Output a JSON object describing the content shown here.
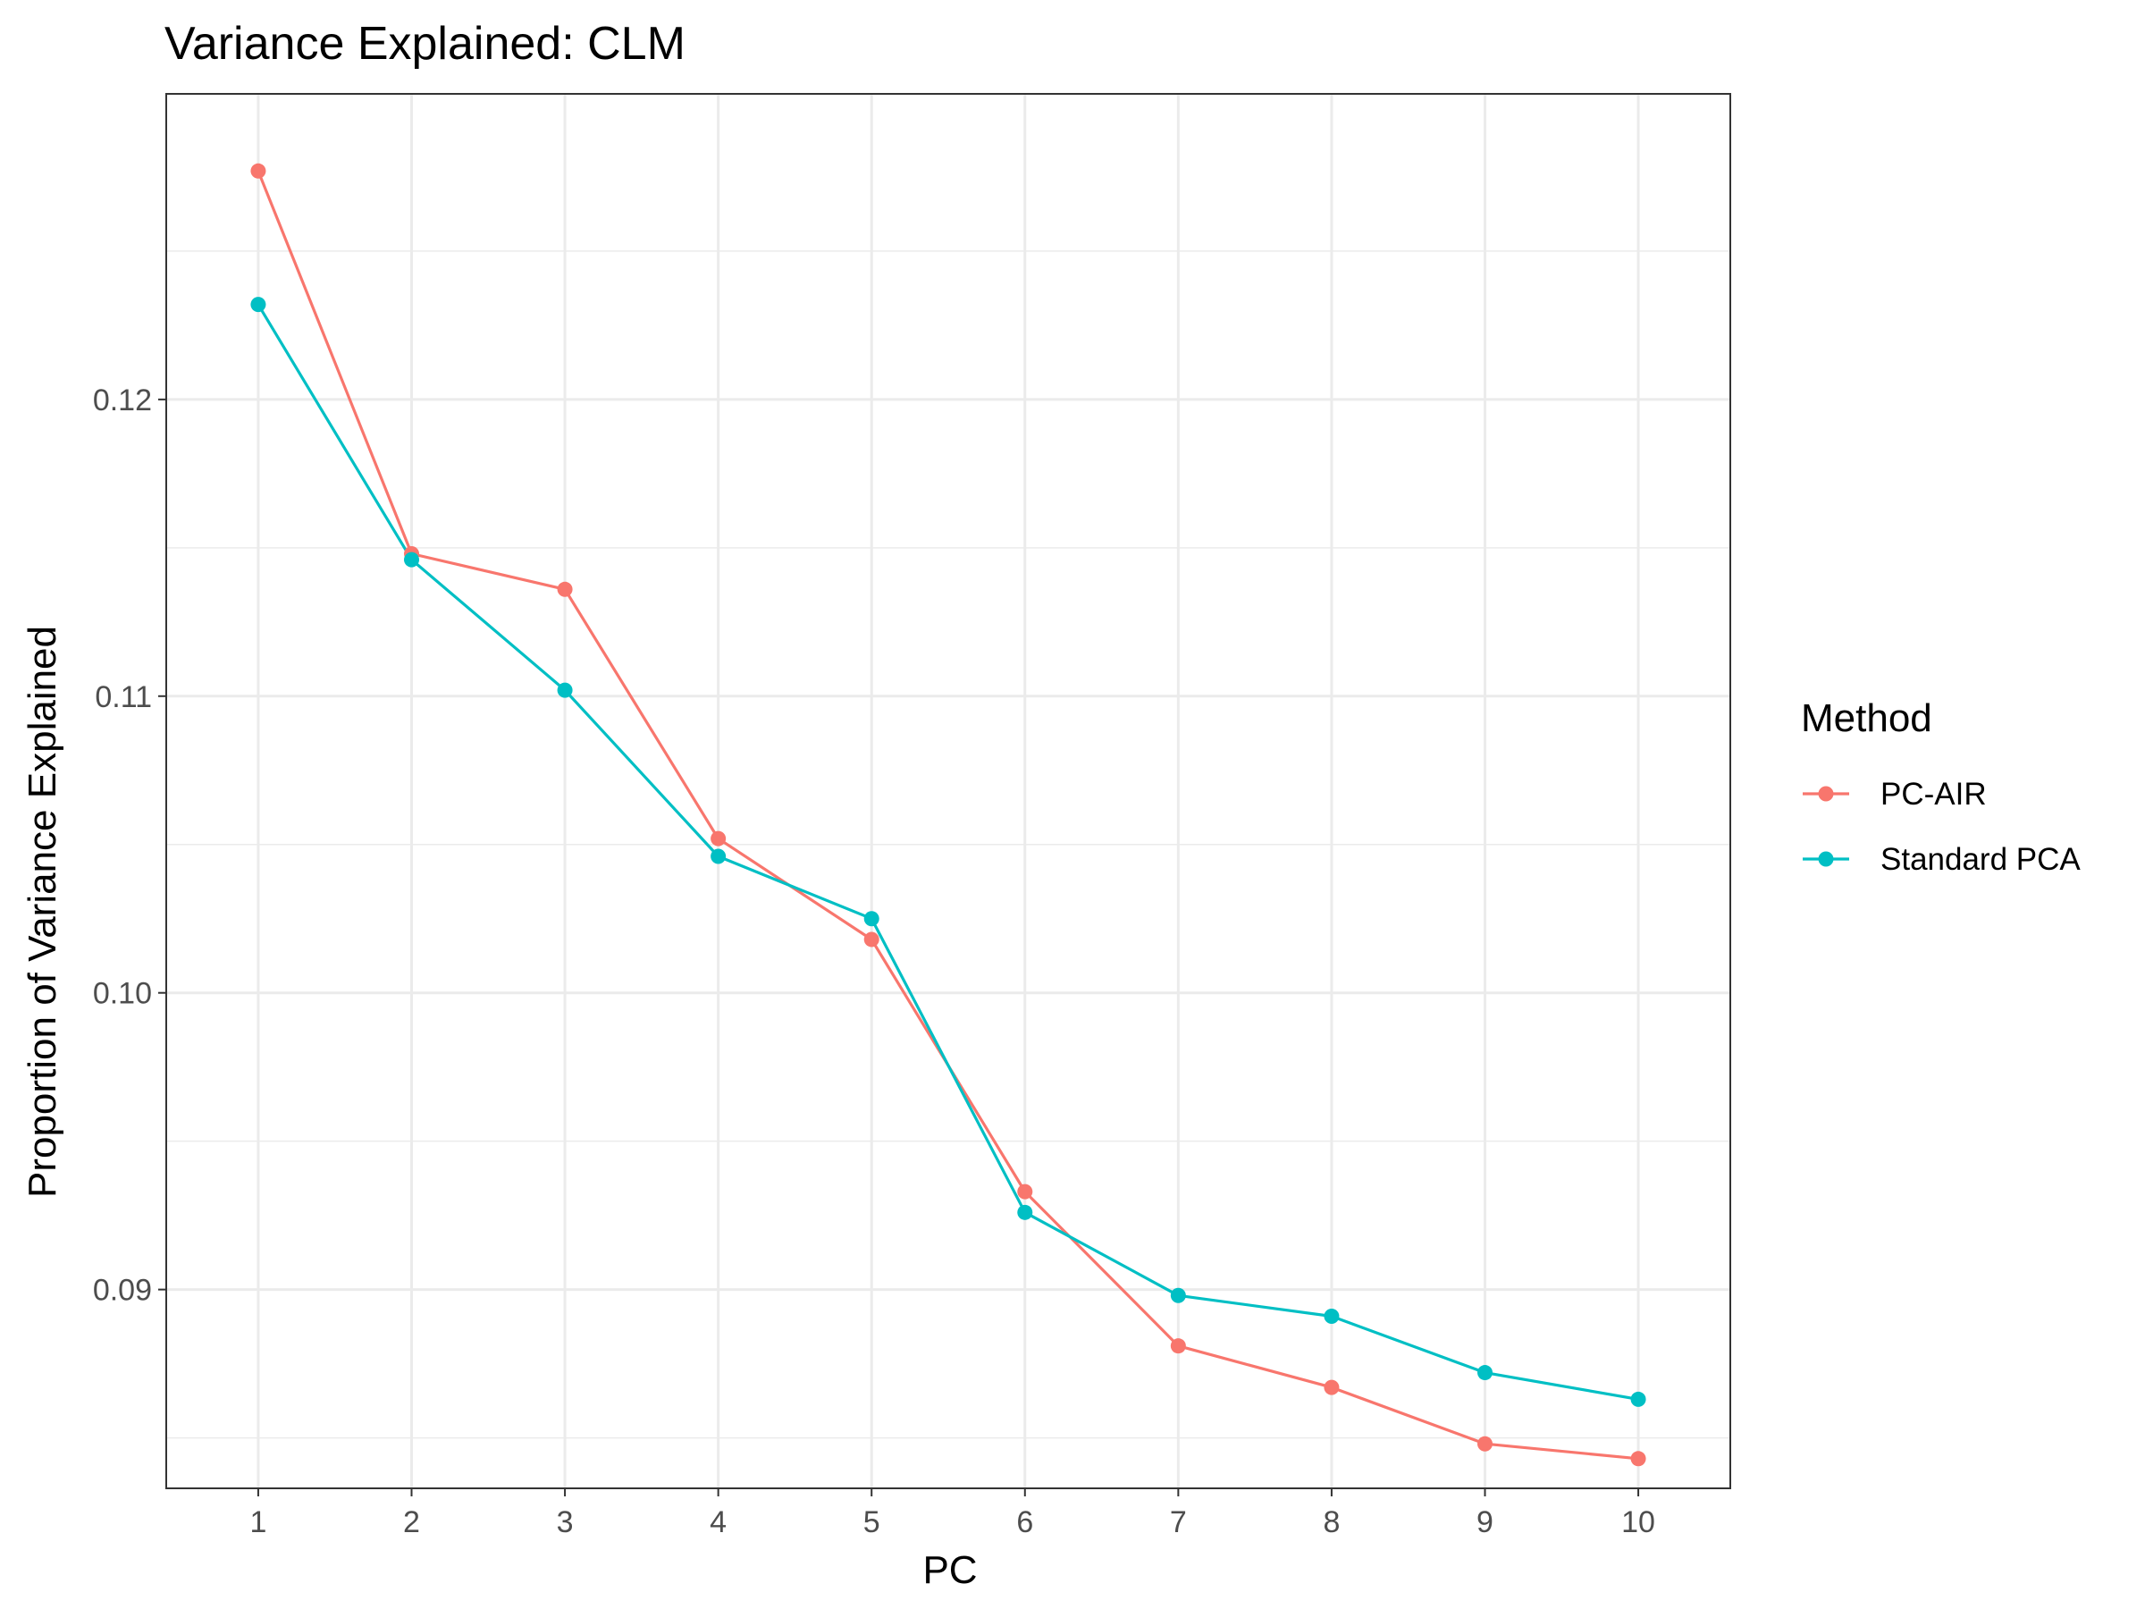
{
  "chart_data": {
    "type": "line",
    "title": "Variance Explained: CLM",
    "xlabel": "PC",
    "ylabel": "Proportion of Variance Explained",
    "x": [
      1,
      2,
      3,
      4,
      5,
      6,
      7,
      8,
      9,
      10
    ],
    "x_ticks": [
      "1",
      "2",
      "3",
      "4",
      "5",
      "6",
      "7",
      "8",
      "9",
      "10"
    ],
    "y_ticks": [
      "0.09",
      "0.10",
      "0.11",
      "0.12"
    ],
    "xlim": [
      0.4,
      10.6
    ],
    "ylim": [
      0.0833,
      0.1303
    ],
    "grid": true,
    "legend": {
      "title": "Method",
      "position": "right"
    },
    "series": [
      {
        "name": "PC-AIR",
        "color": "#F8766D",
        "values": [
          0.1277,
          0.1148,
          0.1136,
          0.1052,
          0.1018,
          0.0933,
          0.0881,
          0.0867,
          0.0848,
          0.0843
        ]
      },
      {
        "name": "Standard PCA",
        "color": "#00BFC4",
        "values": [
          0.1232,
          0.1146,
          0.1102,
          0.1046,
          0.1025,
          0.0926,
          0.0898,
          0.0891,
          0.0872,
          0.0863
        ]
      }
    ]
  }
}
